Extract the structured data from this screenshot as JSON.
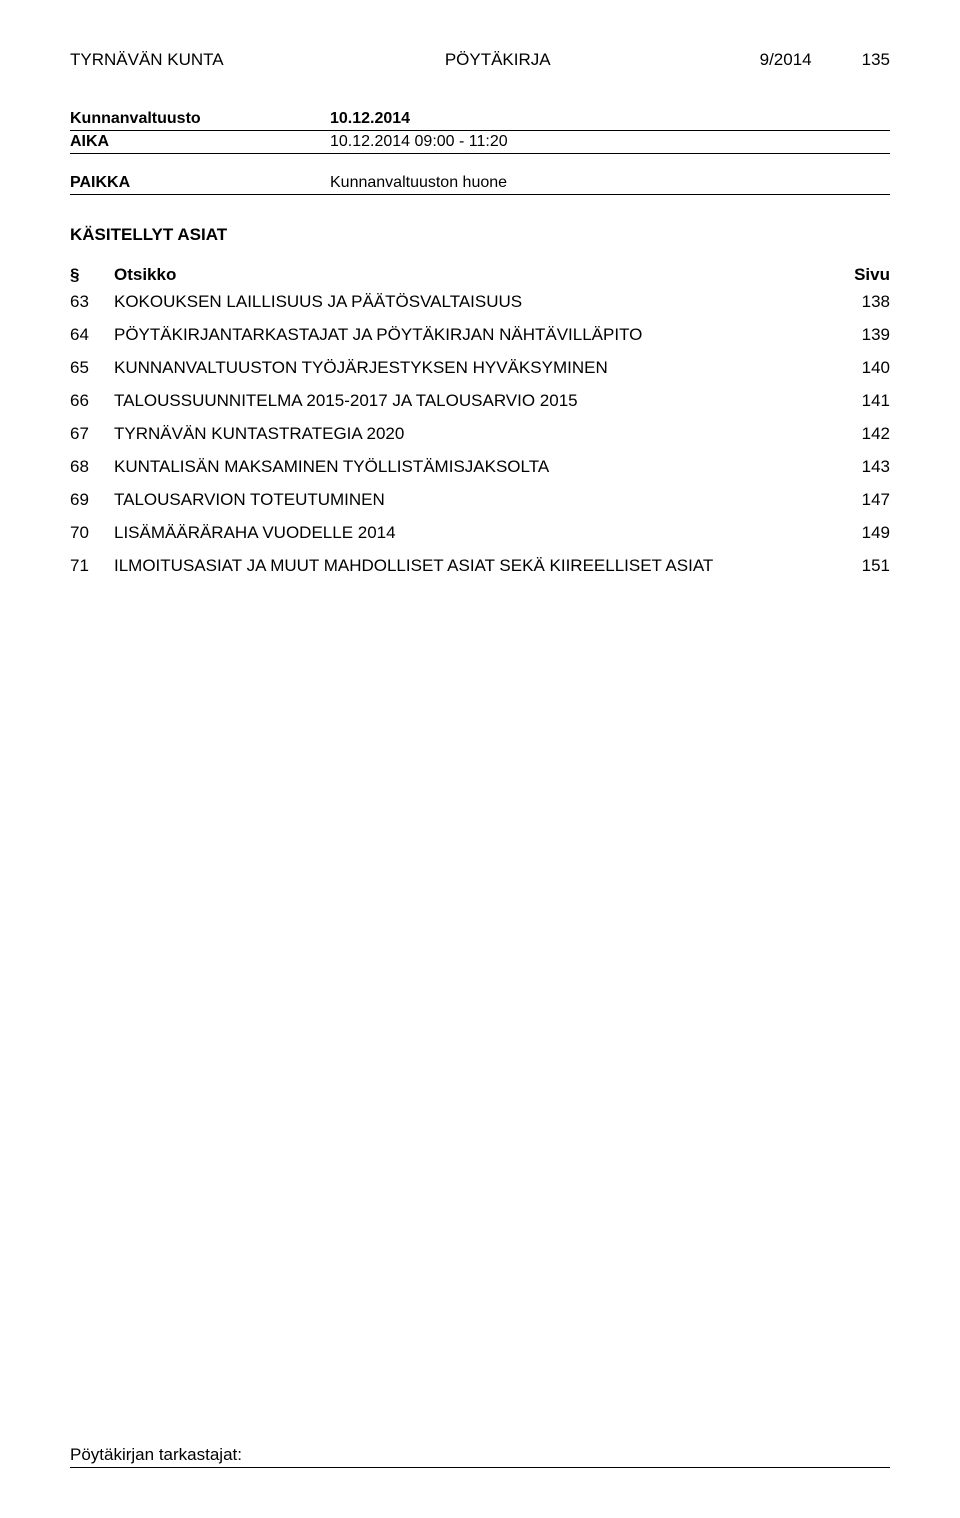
{
  "header": {
    "org": "TYRNÄVÄN KUNTA",
    "docType": "PÖYTÄKIRJA",
    "docNum": "9/2014",
    "pageNum": "135"
  },
  "meeting": {
    "body": "Kunnanvaltuusto",
    "date": "10.12.2014",
    "aikaLabel": "AIKA",
    "aikaValue": "10.12.2014 09:00 - 11:20",
    "paikkaLabel": "PAIKKA",
    "paikkaValue": "Kunnanvaltuuston huone"
  },
  "sectionTitle": "KÄSITELLYT ASIAT",
  "tocHeader": {
    "num": "§",
    "title": "Otsikko",
    "page": "Sivu"
  },
  "toc": [
    {
      "num": "63",
      "title": "KOKOUKSEN LAILLISUUS JA PÄÄTÖSVALTAISUUS",
      "page": "138"
    },
    {
      "num": "64",
      "title": "PÖYTÄKIRJANTARKASTAJAT JA PÖYTÄKIRJAN NÄHTÄVILLÄPITO",
      "page": "139"
    },
    {
      "num": "65",
      "title": "KUNNANVALTUUSTON TYÖJÄRJESTYKSEN HYVÄKSYMINEN",
      "page": "140"
    },
    {
      "num": "66",
      "title": "TALOUSSUUNNITELMA 2015-2017 JA TALOUSARVIO 2015",
      "page": "141"
    },
    {
      "num": "67",
      "title": "TYRNÄVÄN KUNTASTRATEGIA 2020",
      "page": "142"
    },
    {
      "num": "68",
      "title": "KUNTALISÄN MAKSAMINEN TYÖLLISTÄMISJAKSOLTA",
      "page": "143"
    },
    {
      "num": "69",
      "title": "TALOUSARVION TOTEUTUMINEN",
      "page": "147"
    },
    {
      "num": "70",
      "title": "LISÄMÄÄRÄRAHA VUODELLE 2014",
      "page": "149"
    },
    {
      "num": "71",
      "title": "ILMOITUSASIAT JA MUUT MAHDOLLISET ASIAT SEKÄ KIIREELLISET ASIAT",
      "page": "151"
    }
  ],
  "footer": "Pöytäkirjan tarkastajat:",
  "style": {
    "textColor": "#000000",
    "bgColor": "#ffffff",
    "ruleColor": "#000000",
    "baseFontSize": 17,
    "pageWidth": 960,
    "pageHeight": 1518
  }
}
